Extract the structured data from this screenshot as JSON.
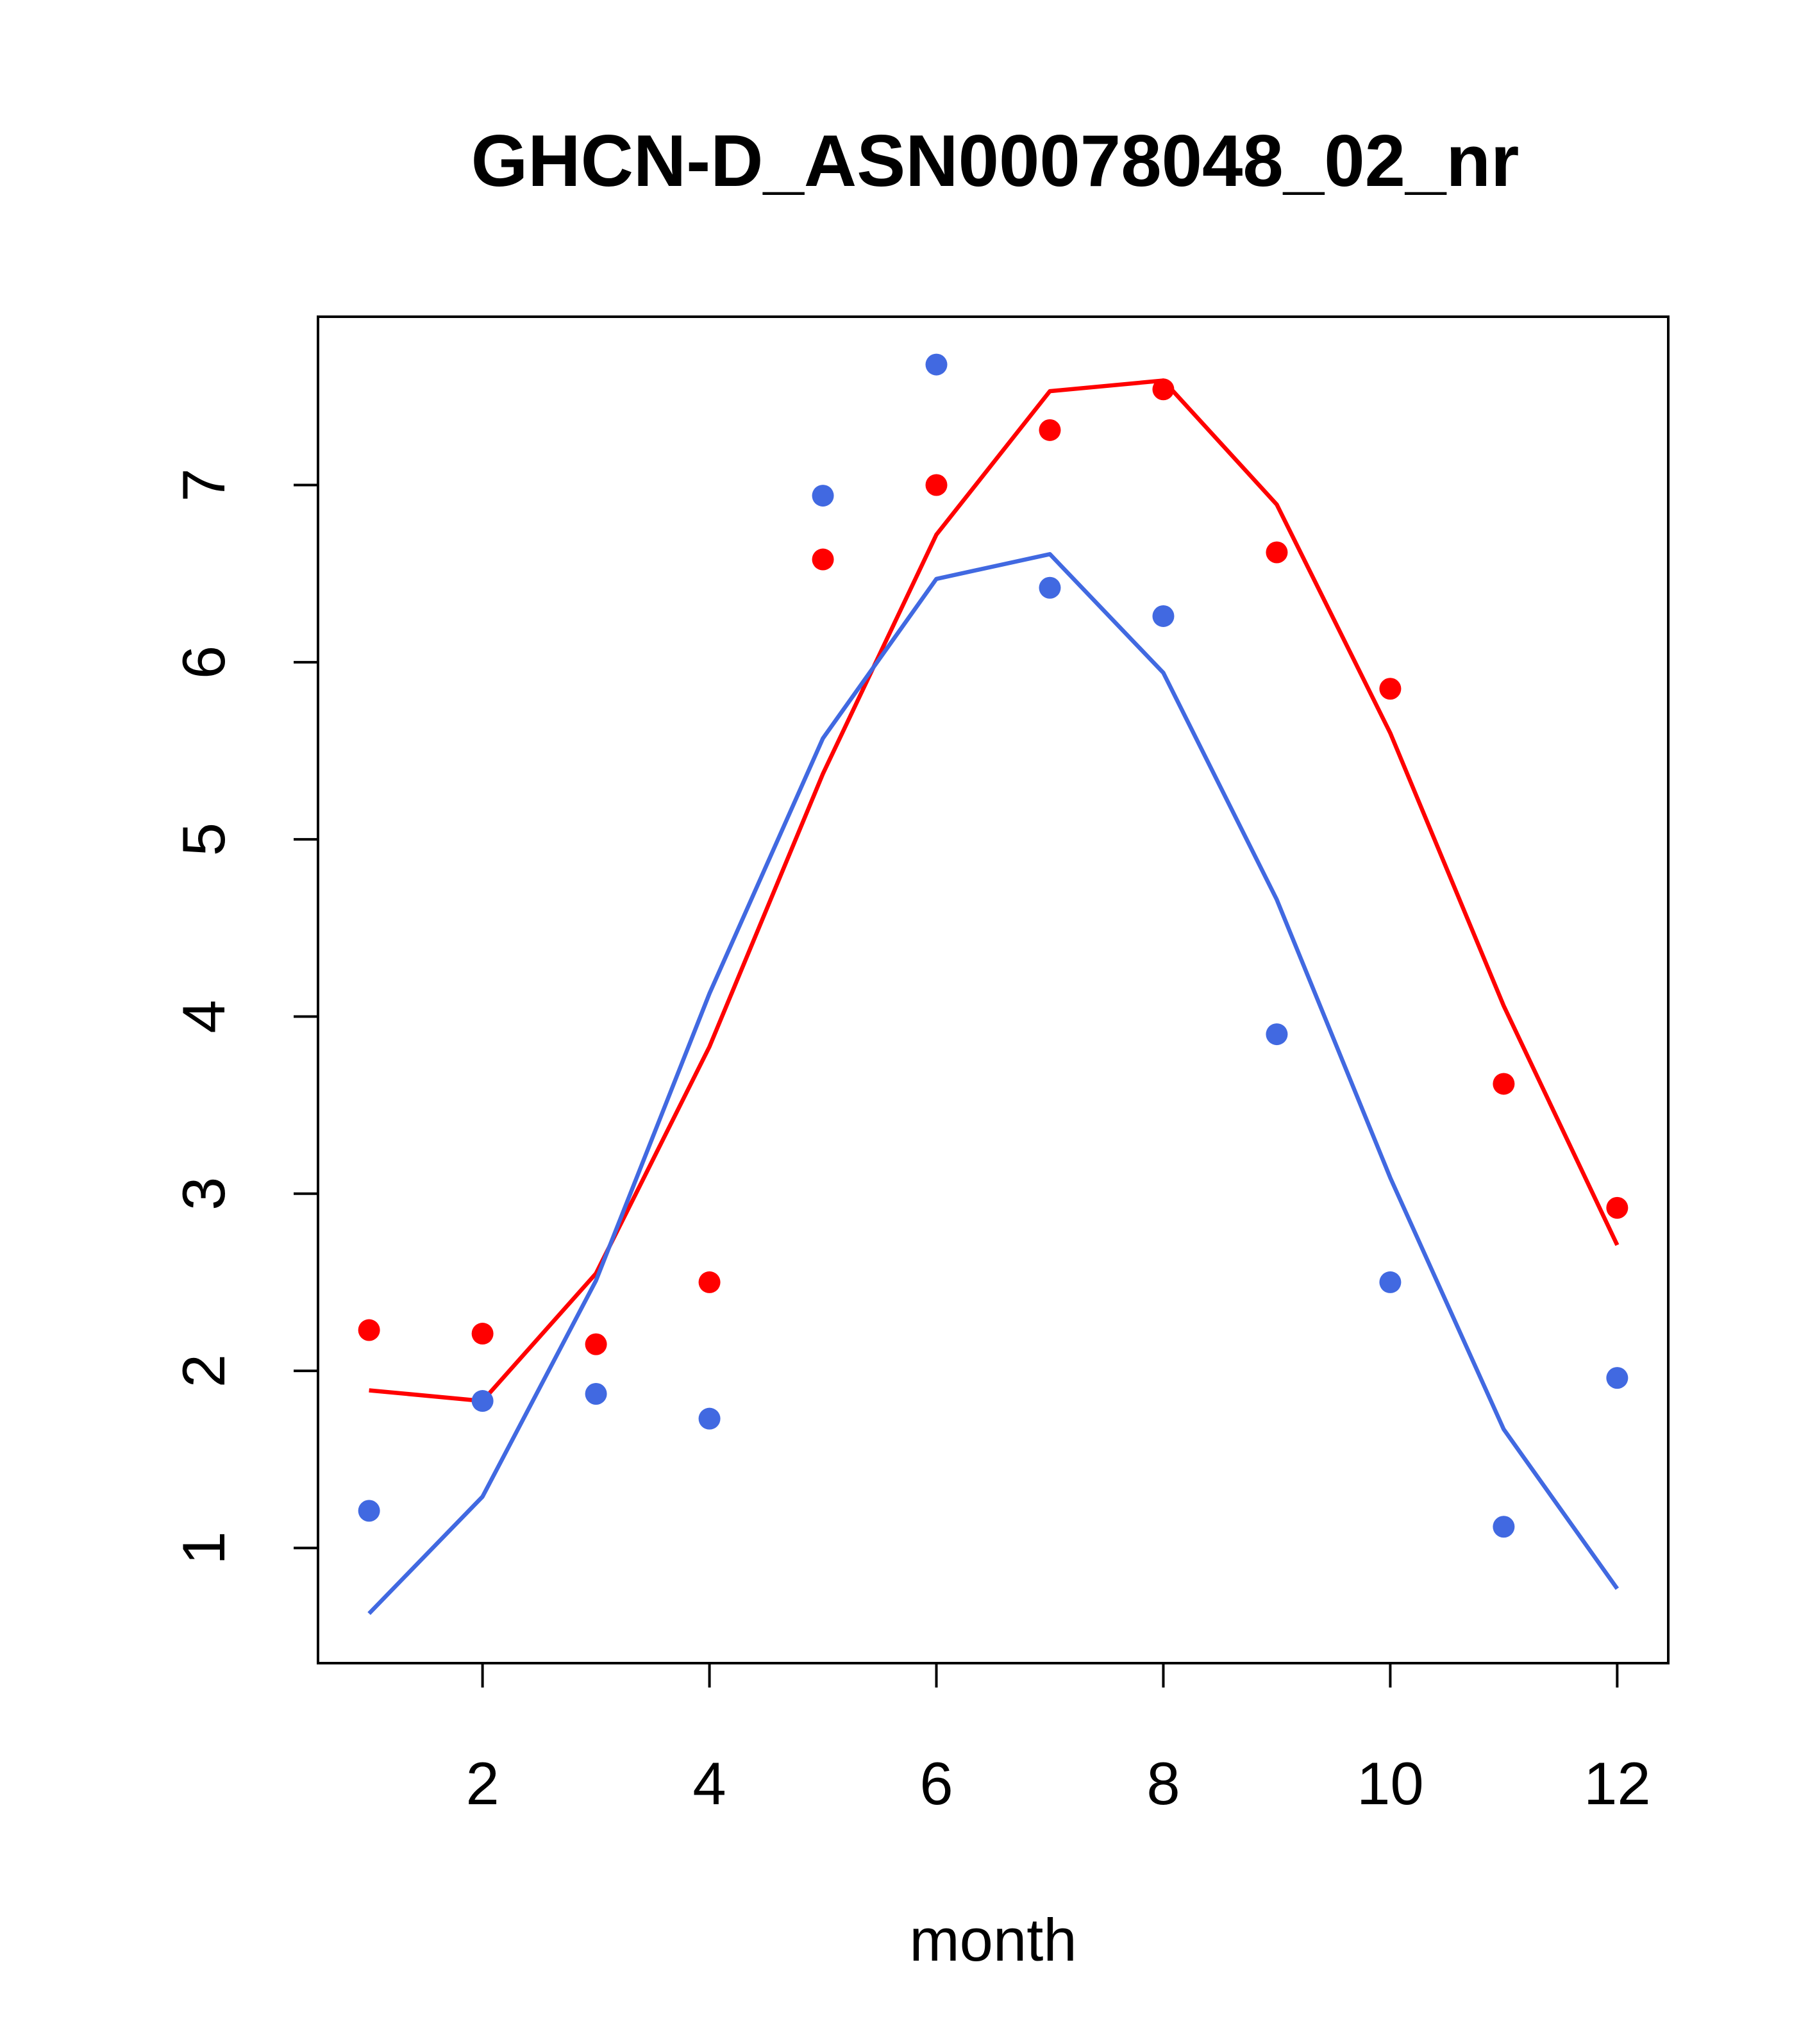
{
  "chart_data": {
    "type": "scatter",
    "title": "GHCN-D_ASN00078048_02_nr",
    "xlabel": "month",
    "ylabel": "",
    "xlim": [
      0.55,
      12.45
    ],
    "ylim": [
      0.35,
      7.95
    ],
    "xticks": [
      2,
      4,
      6,
      8,
      10,
      12
    ],
    "yticks": [
      1,
      2,
      3,
      4,
      5,
      6,
      7
    ],
    "grid": false,
    "legend": "none",
    "x": [
      1,
      2,
      3,
      4,
      5,
      6,
      7,
      8,
      9,
      10,
      11,
      12
    ],
    "series": [
      {
        "color": "#ff0000",
        "points": [
          2.23,
          2.21,
          2.15,
          2.5,
          6.58,
          7.0,
          7.31,
          7.54,
          6.62,
          5.85,
          3.62,
          2.92
        ],
        "line": [
          1.89,
          1.83,
          2.55,
          3.83,
          5.37,
          6.72,
          7.53,
          7.59,
          6.89,
          5.6,
          4.06,
          2.71
        ]
      },
      {
        "color": "#4169e1",
        "points": [
          1.21,
          1.83,
          1.87,
          1.73,
          6.94,
          7.68,
          6.42,
          6.26,
          3.9,
          2.5,
          1.12,
          1.96
        ],
        "line": [
          0.63,
          1.29,
          2.51,
          4.13,
          5.57,
          6.47,
          6.61,
          5.94,
          4.66,
          3.09,
          1.67,
          0.77
        ]
      }
    ]
  }
}
